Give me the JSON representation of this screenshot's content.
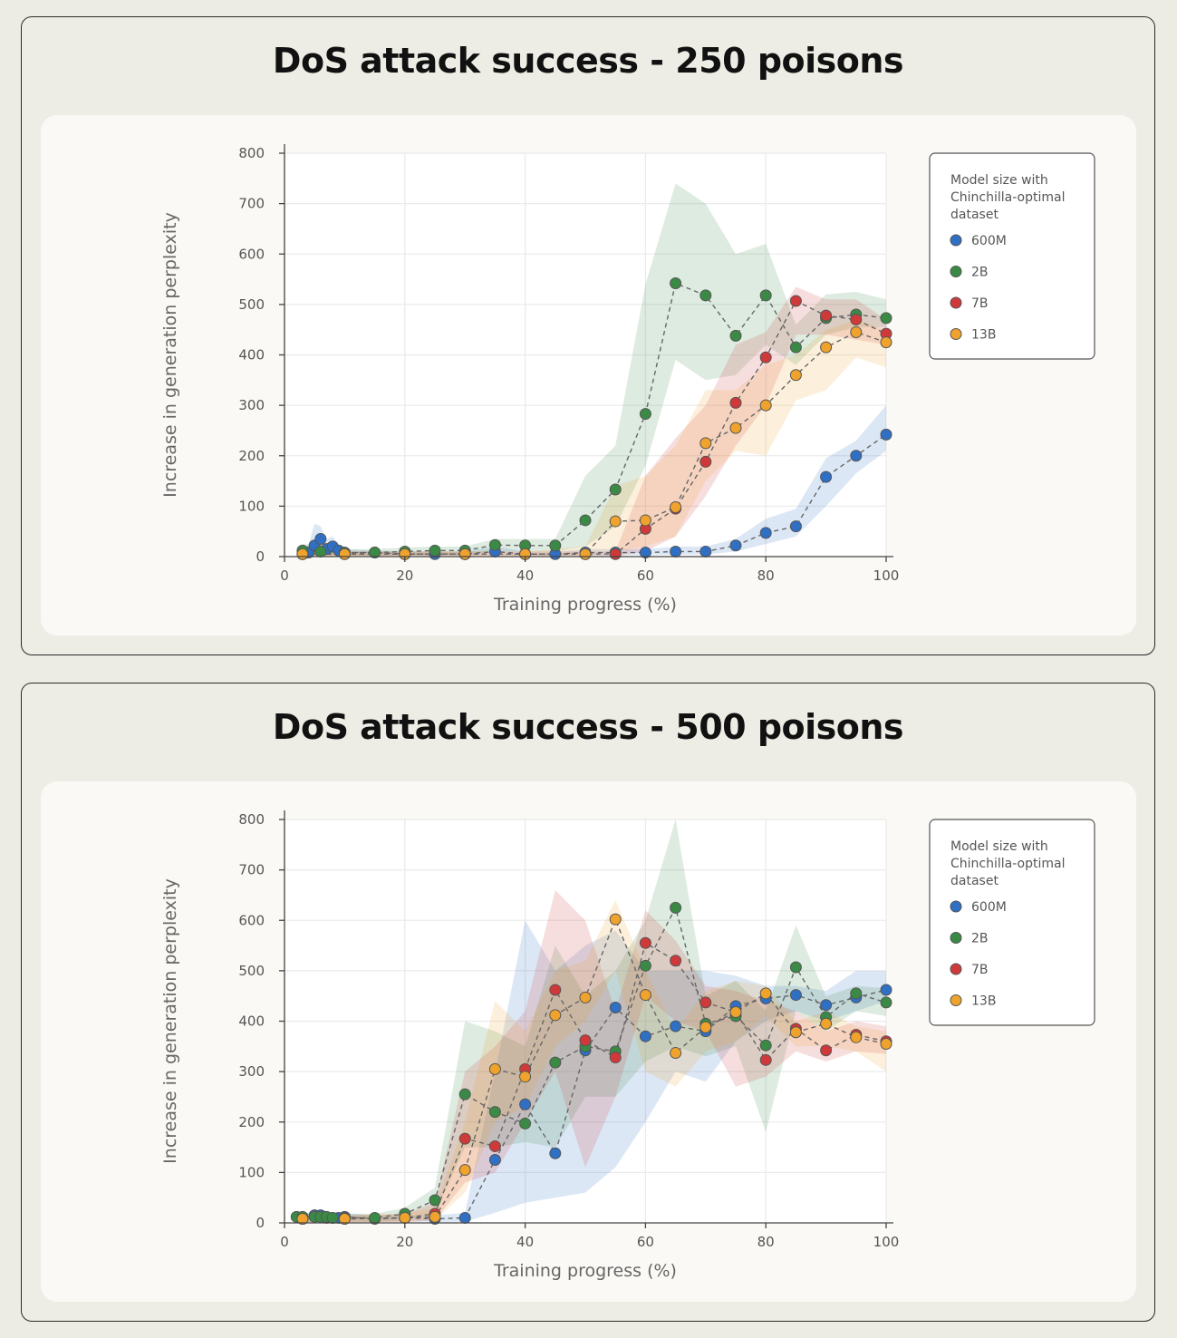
{
  "chart_data": [
    {
      "type": "line",
      "title": "DoS attack success - 250 poisons",
      "xlabel": "Training progress (%)",
      "ylabel": "Increase in generation perplexity",
      "xlim": [
        0,
        100
      ],
      "ylim": [
        0,
        800
      ],
      "xticks": [
        0,
        20,
        40,
        60,
        80,
        100
      ],
      "yticks": [
        0,
        100,
        200,
        300,
        400,
        500,
        600,
        700,
        800
      ],
      "grid": true,
      "legend_title": "Model size with Chinchilla-optimal dataset",
      "legend_placement": "right",
      "series": [
        {
          "name": "600M",
          "color": "#2f6fc4",
          "x": [
            3,
            4,
            5,
            6,
            7,
            8,
            9,
            10,
            15,
            20,
            25,
            30,
            35,
            40,
            45,
            50,
            55,
            60,
            65,
            70,
            75,
            80,
            85,
            90,
            95,
            100
          ],
          "y": [
            5,
            8,
            22,
            35,
            15,
            20,
            12,
            8,
            8,
            5,
            5,
            5,
            10,
            5,
            5,
            8,
            8,
            8,
            10,
            10,
            22,
            47,
            60,
            158,
            200,
            242
          ],
          "lower": [
            0,
            0,
            5,
            5,
            2,
            5,
            2,
            2,
            2,
            2,
            2,
            2,
            3,
            2,
            2,
            3,
            3,
            3,
            4,
            4,
            10,
            25,
            40,
            100,
            165,
            210
          ],
          "upper": [
            15,
            25,
            65,
            60,
            35,
            40,
            25,
            15,
            12,
            10,
            10,
            10,
            20,
            10,
            10,
            15,
            15,
            15,
            20,
            20,
            35,
            75,
            95,
            195,
            230,
            300
          ]
        },
        {
          "name": "2B",
          "color": "#3a8a45",
          "x": [
            3,
            6,
            10,
            15,
            20,
            25,
            30,
            35,
            40,
            45,
            50,
            55,
            60,
            65,
            70,
            75,
            80,
            85,
            90,
            95,
            100
          ],
          "y": [
            12,
            10,
            8,
            8,
            10,
            12,
            12,
            23,
            22,
            22,
            72,
            133,
            283,
            542,
            518,
            438,
            518,
            415,
            473,
            480,
            473
          ],
          "lower": [
            0,
            0,
            2,
            2,
            3,
            3,
            5,
            10,
            10,
            10,
            20,
            60,
            180,
            390,
            350,
            360,
            420,
            380,
            440,
            455,
            455
          ],
          "upper": [
            25,
            22,
            15,
            15,
            18,
            20,
            20,
            35,
            35,
            35,
            160,
            220,
            540,
            740,
            700,
            600,
            620,
            460,
            520,
            525,
            510
          ]
        },
        {
          "name": "7B",
          "color": "#d0393a",
          "x": [
            3,
            10,
            20,
            30,
            40,
            50,
            55,
            60,
            65,
            70,
            75,
            80,
            85,
            90,
            95,
            100
          ],
          "y": [
            5,
            5,
            5,
            5,
            5,
            5,
            5,
            55,
            95,
            188,
            305,
            395,
            507,
            478,
            470,
            442
          ],
          "lower": [
            0,
            1,
            1,
            1,
            1,
            1,
            1,
            10,
            40,
            120,
            220,
            300,
            440,
            440,
            430,
            420
          ],
          "upper": [
            10,
            10,
            10,
            10,
            10,
            10,
            10,
            160,
            235,
            300,
            420,
            445,
            535,
            510,
            510,
            470
          ]
        },
        {
          "name": "13B",
          "color": "#f0a32c",
          "x": [
            3,
            10,
            20,
            30,
            40,
            50,
            55,
            60,
            65,
            70,
            75,
            80,
            85,
            90,
            95,
            100
          ],
          "y": [
            5,
            5,
            5,
            5,
            5,
            5,
            70,
            72,
            98,
            225,
            255,
            300,
            360,
            415,
            445,
            425
          ],
          "lower": [
            0,
            1,
            1,
            1,
            1,
            1,
            10,
            20,
            40,
            150,
            210,
            200,
            310,
            330,
            395,
            375
          ],
          "upper": [
            10,
            10,
            10,
            10,
            10,
            20,
            140,
            160,
            220,
            330,
            330,
            380,
            400,
            450,
            470,
            450
          ]
        }
      ]
    },
    {
      "type": "line",
      "title": "DoS attack success - 500 poisons",
      "xlabel": "Training progress (%)",
      "ylabel": "Increase in generation perplexity",
      "xlim": [
        0,
        100
      ],
      "ylim": [
        0,
        800
      ],
      "xticks": [
        0,
        20,
        40,
        60,
        80,
        100
      ],
      "yticks": [
        0,
        100,
        200,
        300,
        400,
        500,
        600,
        700,
        800
      ],
      "grid": true,
      "legend_title": "Model size with Chinchilla-optimal dataset",
      "legend_placement": "right",
      "series": [
        {
          "name": "600M",
          "color": "#2f6fc4",
          "x": [
            3,
            5,
            6,
            7,
            8,
            9,
            10,
            15,
            20,
            25,
            30,
            35,
            40,
            45,
            50,
            55,
            60,
            65,
            70,
            75,
            80,
            85,
            90,
            95,
            100
          ],
          "y": [
            8,
            15,
            15,
            10,
            10,
            10,
            12,
            8,
            10,
            8,
            10,
            125,
            235,
            138,
            342,
            427,
            370,
            390,
            380,
            430,
            445,
            452,
            432,
            447,
            462
          ],
          "lower": [
            0,
            2,
            2,
            2,
            2,
            2,
            2,
            2,
            2,
            2,
            2,
            20,
            40,
            50,
            60,
            110,
            200,
            300,
            280,
            360,
            400,
            420,
            400,
            420,
            440
          ],
          "upper": [
            15,
            25,
            25,
            20,
            20,
            20,
            20,
            15,
            15,
            15,
            20,
            300,
            600,
            500,
            550,
            580,
            500,
            500,
            500,
            490,
            470,
            470,
            460,
            500,
            500
          ]
        },
        {
          "name": "2B",
          "color": "#3a8a45",
          "x": [
            2,
            3,
            5,
            6,
            7,
            8,
            10,
            15,
            20,
            25,
            30,
            35,
            40,
            45,
            50,
            55,
            60,
            65,
            70,
            75,
            80,
            85,
            90,
            95,
            100
          ],
          "y": [
            12,
            12,
            12,
            12,
            12,
            10,
            10,
            10,
            18,
            45,
            255,
            220,
            197,
            318,
            350,
            340,
            510,
            625,
            395,
            410,
            352,
            507,
            408,
            455,
            437
          ],
          "lower": [
            2,
            2,
            2,
            2,
            2,
            2,
            2,
            2,
            5,
            20,
            150,
            150,
            160,
            150,
            250,
            250,
            320,
            350,
            330,
            350,
            180,
            420,
            380,
            420,
            410
          ],
          "upper": [
            20,
            20,
            20,
            20,
            20,
            18,
            18,
            18,
            30,
            70,
            400,
            380,
            350,
            550,
            450,
            500,
            600,
            820,
            450,
            480,
            420,
            590,
            450,
            470,
            465
          ]
        },
        {
          "name": "7B",
          "color": "#d0393a",
          "x": [
            3,
            10,
            20,
            25,
            30,
            35,
            40,
            45,
            50,
            55,
            60,
            65,
            70,
            75,
            80,
            85,
            90,
            95,
            100
          ],
          "y": [
            8,
            8,
            10,
            18,
            167,
            152,
            305,
            462,
            362,
            328,
            555,
            520,
            437,
            418,
            323,
            385,
            342,
            373,
            360
          ],
          "lower": [
            1,
            1,
            2,
            5,
            80,
            100,
            200,
            300,
            110,
            250,
            450,
            400,
            380,
            270,
            290,
            340,
            320,
            340,
            335
          ],
          "upper": [
            15,
            15,
            18,
            40,
            300,
            350,
            420,
            660,
            600,
            420,
            620,
            560,
            470,
            460,
            440,
            420,
            380,
            400,
            390
          ]
        },
        {
          "name": "13B",
          "color": "#f0a32c",
          "x": [
            3,
            10,
            20,
            25,
            30,
            35,
            40,
            45,
            50,
            55,
            60,
            65,
            70,
            75,
            80,
            85,
            90,
            95,
            100
          ],
          "y": [
            8,
            8,
            10,
            12,
            105,
            305,
            290,
            412,
            447,
            602,
            452,
            337,
            388,
            418,
            455,
            378,
            395,
            368,
            355
          ],
          "lower": [
            1,
            1,
            2,
            5,
            60,
            200,
            230,
            350,
            400,
            500,
            300,
            270,
            340,
            360,
            410,
            350,
            350,
            340,
            300
          ],
          "upper": [
            15,
            15,
            18,
            30,
            200,
            440,
            380,
            500,
            520,
            640,
            500,
            380,
            460,
            480,
            470,
            400,
            420,
            390,
            380
          ]
        }
      ]
    }
  ]
}
